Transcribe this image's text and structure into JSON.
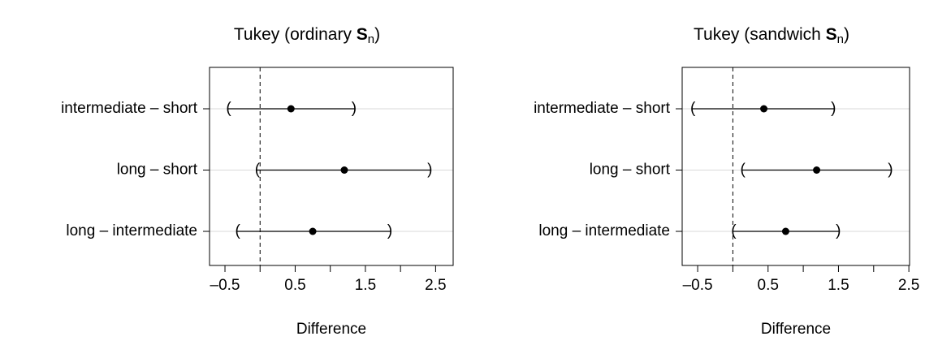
{
  "chart_data": [
    {
      "type": "interval",
      "title": [
        "Tukey (ordinary ",
        "S",
        "n",
        ")"
      ],
      "x_label": "Difference",
      "categories": [
        "intermediate – short",
        "long – short",
        "long – intermediate"
      ],
      "lower": [
        -0.46,
        -0.05,
        -0.33
      ],
      "estimate": [
        0.44,
        1.2,
        0.75
      ],
      "upper": [
        1.35,
        2.43,
        1.86
      ],
      "xlim": [
        -0.72,
        2.75
      ],
      "xticks": [
        {
          "value": -0.5,
          "label": "–0.5"
        },
        0.5,
        1.5,
        2.5
      ],
      "minor_xticks": [
        0,
        1,
        2
      ],
      "ref_line": 0,
      "grid": true,
      "color": "#000000"
    },
    {
      "type": "interval",
      "title": [
        "Tukey (sandwich ",
        "S",
        "n",
        ")"
      ],
      "x_label": "Difference",
      "categories": [
        "intermediate – short",
        "long – short",
        "long – intermediate"
      ],
      "lower": [
        -0.58,
        0.13,
        0.0
      ],
      "estimate": [
        0.44,
        1.19,
        0.75
      ],
      "upper": [
        1.44,
        2.25,
        1.51
      ],
      "xlim": [
        -0.72,
        2.51
      ],
      "xticks": [
        {
          "value": -0.5,
          "label": "–0.5"
        },
        0.5,
        1.5,
        2.5
      ],
      "minor_xticks": [
        0,
        1,
        2
      ],
      "ref_line": 0,
      "grid": true,
      "color": "#000000"
    }
  ]
}
